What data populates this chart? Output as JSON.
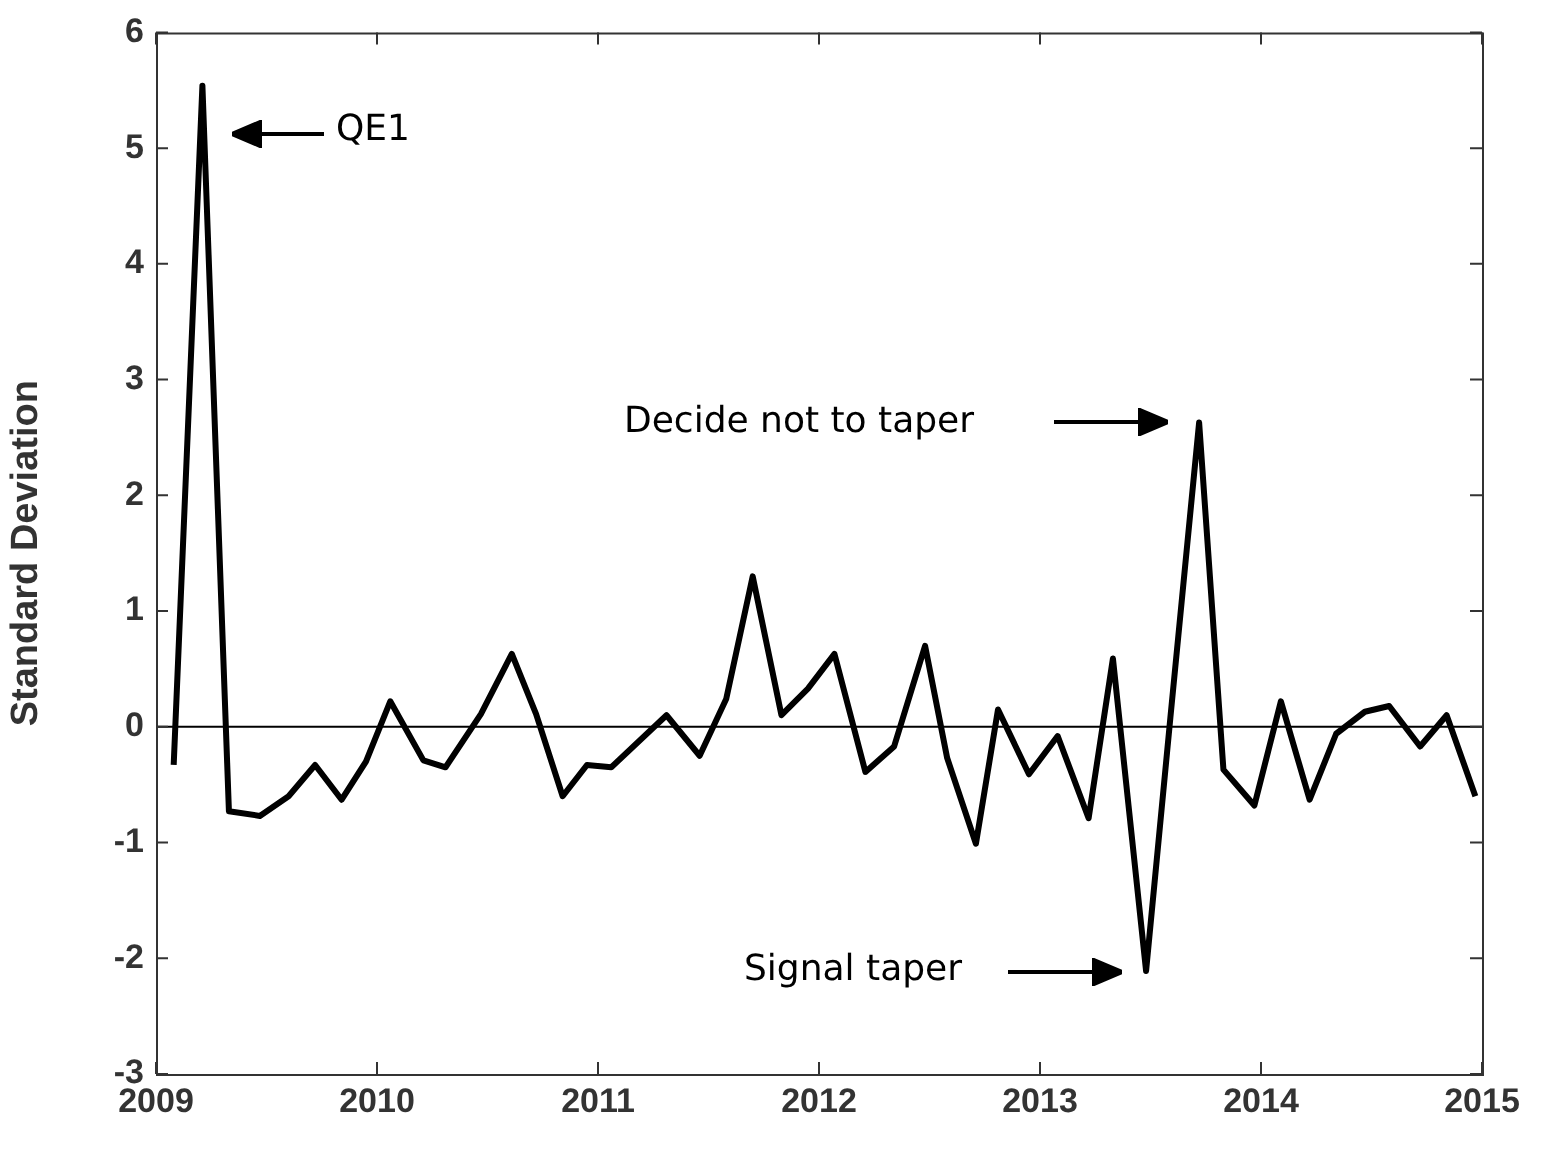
{
  "chart_data": {
    "type": "line",
    "ylabel": "Standard Deviation",
    "x": [
      2009.08,
      2009.21,
      2009.33,
      2009.47,
      2009.6,
      2009.72,
      2009.84,
      2009.95,
      2010.06,
      2010.21,
      2010.31,
      2010.47,
      2010.61,
      2010.72,
      2010.84,
      2010.95,
      2011.06,
      2011.31,
      2011.46,
      2011.58,
      2011.7,
      2011.83,
      2011.95,
      2012.07,
      2012.21,
      2012.34,
      2012.48,
      2012.58,
      2012.71,
      2012.81,
      2012.95,
      2013.08,
      2013.22,
      2013.33,
      2013.48,
      2013.59,
      2013.72,
      2013.83,
      2013.97,
      2014.09,
      2014.22,
      2014.34,
      2014.47,
      2014.58,
      2014.72,
      2014.84,
      2014.97
    ],
    "series": [
      {
        "color": "#000000",
        "values": [
          -0.33,
          5.54,
          -0.73,
          -0.77,
          -0.6,
          -0.33,
          -0.63,
          -0.3,
          0.22,
          -0.29,
          -0.35,
          0.11,
          0.63,
          0.11,
          -0.6,
          -0.33,
          -0.35,
          0.1,
          -0.25,
          0.24,
          1.3,
          0.1,
          0.33,
          0.63,
          -0.39,
          -0.17,
          0.7,
          -0.27,
          -1.01,
          0.15,
          -0.41,
          -0.08,
          -0.79,
          0.59,
          -2.11,
          0.08,
          2.63,
          -0.37,
          -0.68,
          0.22,
          -0.63,
          -0.06,
          0.13,
          0.18,
          -0.17,
          0.1,
          -0.6
        ]
      }
    ],
    "xlim": [
      2009,
      2015
    ],
    "xticks": [
      2009,
      2010,
      2011,
      2012,
      2013,
      2014,
      2015
    ],
    "ylim": [
      -3,
      6
    ],
    "yticks": [
      -3,
      -2,
      -1,
      0,
      1,
      2,
      3,
      4,
      5,
      6
    ],
    "ref_lines": [
      {
        "axis": "y",
        "value": 0,
        "color": "#000000"
      }
    ],
    "annotations": [
      "QE1",
      "Decide not to taper",
      "Signal taper"
    ],
    "grid": false,
    "legend": false,
    "marker": "none",
    "line_style": "solid"
  }
}
